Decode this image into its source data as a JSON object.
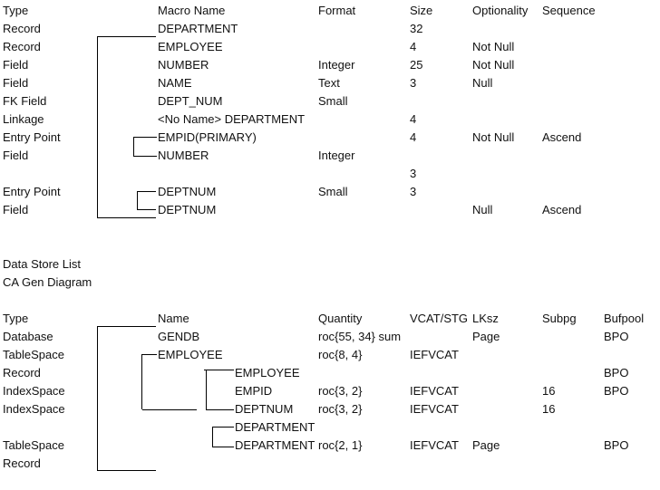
{
  "macro_table": {
    "headers": [
      "Type",
      "Macro Name",
      "Format",
      "Size",
      "Optionality",
      "Sequence"
    ],
    "rows": [
      [
        "Record",
        "DEPARTMENT",
        "",
        "32",
        "",
        ""
      ],
      [
        "Record",
        "EMPLOYEE",
        "",
        "4",
        "Not Null",
        ""
      ],
      [
        "Field",
        "NUMBER",
        "Integer",
        "25",
        "Not Null",
        ""
      ],
      [
        "Field",
        "NAME",
        "Text",
        "3",
        "Null",
        ""
      ],
      [
        "FK Field",
        "DEPT_NUM",
        "Small",
        "",
        "",
        ""
      ],
      [
        "Linkage",
        "<No Name> DEPARTMENT",
        "",
        "4",
        "",
        ""
      ],
      [
        "Entry Point",
        "EMPID(PRIMARY)",
        "",
        "4",
        "Not Null",
        "Ascend"
      ],
      [
        "Field",
        "NUMBER",
        "Integer",
        "",
        "",
        ""
      ],
      [
        "",
        "",
        "",
        "3",
        "",
        ""
      ],
      [
        "Entry Point",
        "DEPTNUM",
        "Small",
        "3",
        "",
        ""
      ],
      [
        "Field",
        "DEPTNUM",
        "",
        "",
        "Null",
        "Ascend"
      ]
    ]
  },
  "section_titles": [
    "Data Store List",
    "CA Gen Diagram"
  ],
  "data_store_table": {
    "headers": [
      "Type",
      "Name",
      "Quantity",
      "VCAT/STG",
      "LKsz",
      "Subpg",
      "Bufpool"
    ],
    "rows": [
      {
        "type": "Database",
        "name": "GENDB",
        "nested": false,
        "quantity": "roc{55, 34} sum",
        "vcat": "",
        "lksz": "Page",
        "subpg": "",
        "bufpool": "BPO"
      },
      {
        "type": "TableSpace",
        "name": "EMPLOYEE",
        "nested": false,
        "quantity": "roc{8, 4}",
        "vcat": "IEFVCAT",
        "lksz": "",
        "subpg": "",
        "bufpool": ""
      },
      {
        "type": "Record",
        "name": "EMPLOYEE",
        "nested": true,
        "quantity": "",
        "vcat": "",
        "lksz": "",
        "subpg": "",
        "bufpool": "BPO"
      },
      {
        "type": "IndexSpace",
        "name": "EMPID",
        "nested": true,
        "quantity": "roc{3, 2}",
        "vcat": "IEFVCAT",
        "lksz": "",
        "subpg": "16",
        "bufpool": "BPO"
      },
      {
        "type": "IndexSpace",
        "name": "DEPTNUM",
        "nested": true,
        "quantity": "roc{3, 2}",
        "vcat": "IEFVCAT",
        "lksz": "",
        "subpg": "16",
        "bufpool": ""
      },
      {
        "type": "",
        "name": "DEPARTMENT",
        "nested": true,
        "quantity": "",
        "vcat": "",
        "lksz": "",
        "subpg": "",
        "bufpool": ""
      },
      {
        "type": "TableSpace",
        "name": "DEPARTMENT",
        "nested": true,
        "quantity": "roc{2, 1}",
        "vcat": "IEFVCAT",
        "lksz": "Page",
        "subpg": "",
        "bufpool": "BPO"
      },
      {
        "type": "Record",
        "name": "",
        "nested": false,
        "quantity": "",
        "vcat": "",
        "lksz": "",
        "subpg": "",
        "bufpool": ""
      }
    ]
  }
}
